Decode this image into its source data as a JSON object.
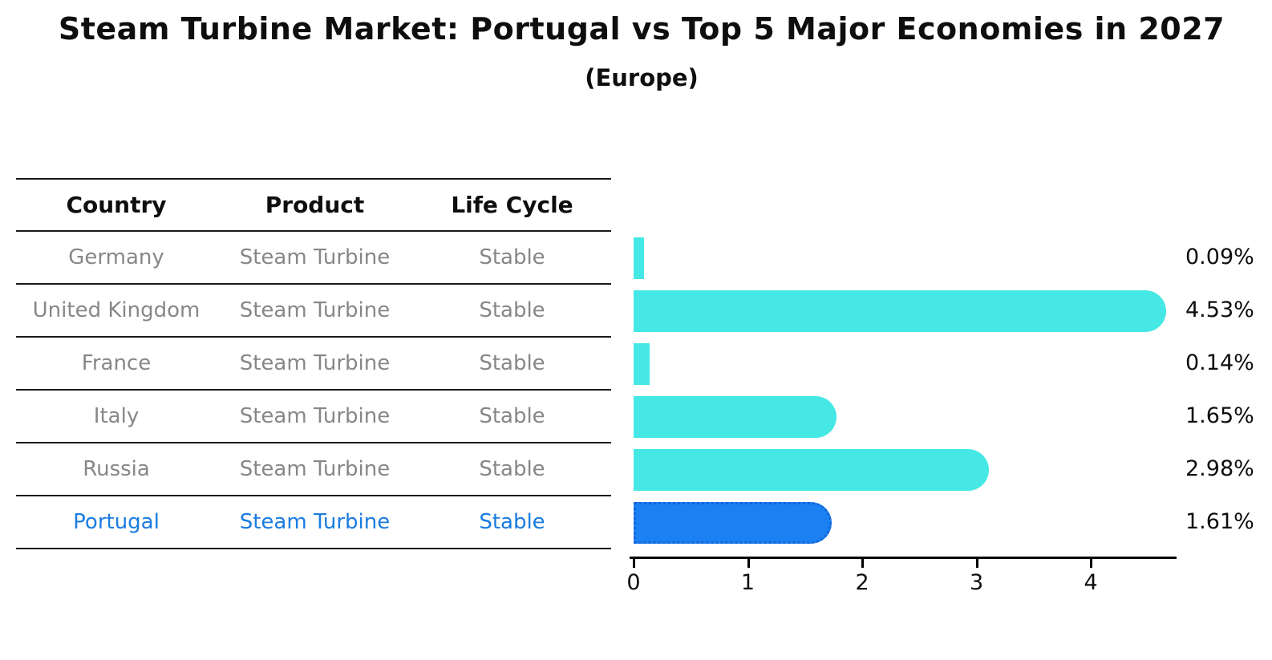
{
  "title": "Steam Turbine Market: Portugal vs Top 5 Major Economies in 2027",
  "subtitle": "(Europe)",
  "table": {
    "headers": [
      "Country",
      "Product",
      "Life Cycle"
    ],
    "rows": [
      {
        "country": "Germany",
        "product": "Steam Turbine",
        "life_cycle": "Stable",
        "highlight": false
      },
      {
        "country": "United Kingdom",
        "product": "Steam Turbine",
        "life_cycle": "Stable",
        "highlight": false
      },
      {
        "country": "France",
        "product": "Steam Turbine",
        "life_cycle": "Stable",
        "highlight": false
      },
      {
        "country": "Italy",
        "product": "Steam Turbine",
        "life_cycle": "Stable",
        "highlight": false
      },
      {
        "country": "Russia",
        "product": "Steam Turbine",
        "life_cycle": "Stable",
        "highlight": false
      },
      {
        "country": "Portugal",
        "product": "Steam Turbine",
        "life_cycle": "Stable",
        "highlight": true
      }
    ]
  },
  "chart_data": {
    "type": "bar",
    "orientation": "horizontal",
    "title": "Steam Turbine Market: Portugal vs Top 5 Major Economies in 2027",
    "subtitle": "(Europe)",
    "categories": [
      "Germany",
      "United Kingdom",
      "France",
      "Italy",
      "Russia",
      "Portugal"
    ],
    "values": [
      0.09,
      4.53,
      0.14,
      1.65,
      2.98,
      1.61
    ],
    "labels": [
      "0.09%",
      "4.53%",
      "0.14%",
      "1.65%",
      "2.98%",
      "1.61%"
    ],
    "unit": "%",
    "xlabel": "",
    "ylabel": "",
    "xlim": [
      0,
      4.75
    ],
    "xticks": [
      "0",
      "1",
      "2",
      "3",
      "4"
    ],
    "grid": false,
    "legend": "none",
    "highlight_index": 5,
    "bar_color": "#45e8e4",
    "highlight_color": "#1b81f2",
    "highlight_border": "#1465d8"
  },
  "colors": {
    "row_text": "#878787",
    "highlight_text": "#1a7ce0",
    "header_text": "#0e0e0e",
    "axis": "#000000"
  }
}
